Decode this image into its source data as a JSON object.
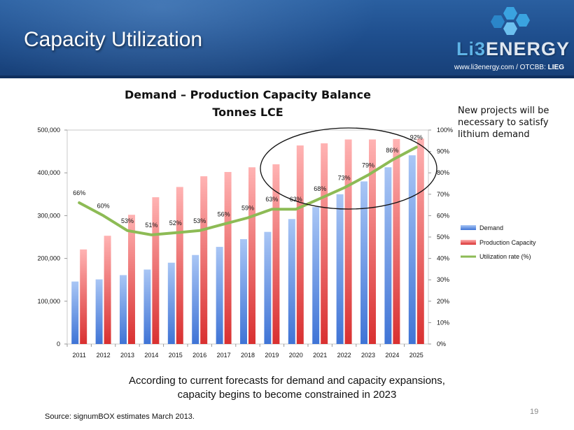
{
  "slide": {
    "title": "Capacity Utilization",
    "logo": {
      "text_prefix": "Li3",
      "text_suffix": "ENERGY",
      "icon": "hexagon-cluster-icon"
    },
    "url_text": "www.li3energy.com / OTCBB: ",
    "ticker": "LIEG",
    "callout": "New projects will be necessary to satisfy lithium demand",
    "caption_line1": "According to current forecasts for demand and capacity expansions,",
    "caption_line2": "capacity begins to become constrained in 2023",
    "source": "Source: signumBOX estimates March 2013.",
    "page_number": "19",
    "colors": {
      "header": "#1f4f8e",
      "demand": "#6c9be6",
      "capacity": "#f06a6a",
      "utilization": "#8dbb55"
    }
  },
  "chart_data": {
    "type": "bar",
    "title": "Demand – Production Capacity Balance",
    "subtitle": "Tonnes LCE",
    "categories": [
      "2011",
      "2012",
      "2013",
      "2014",
      "2015",
      "2016",
      "2017",
      "2018",
      "2019",
      "2020",
      "2021",
      "2022",
      "2023",
      "2024",
      "2025"
    ],
    "series": [
      {
        "name": "Demand",
        "type": "bar",
        "axis": "left",
        "values": [
          146000,
          151000,
          161000,
          174000,
          190000,
          208000,
          227000,
          245000,
          262000,
          292000,
          320000,
          350000,
          380000,
          413000,
          441000
        ]
      },
      {
        "name": "Production Capacity",
        "type": "bar",
        "axis": "left",
        "values": [
          221000,
          253000,
          302000,
          343000,
          367000,
          392000,
          402000,
          413000,
          420000,
          464000,
          469000,
          478000,
          478000,
          479000,
          480000
        ]
      },
      {
        "name": "Utilization rate (%)",
        "type": "line",
        "axis": "right",
        "values": [
          66,
          60,
          53,
          51,
          52,
          53,
          56,
          59,
          63,
          63,
          68,
          73,
          79,
          86,
          92
        ],
        "labels": [
          "66%",
          "60%",
          "53%",
          "51%",
          "52%",
          "53%",
          "56%",
          "59%",
          "63%",
          "63%",
          "68%",
          "73%",
          "79%",
          "86%",
          "92%"
        ]
      }
    ],
    "left_ticks": [
      "0",
      "100,000",
      "200,000",
      "300,000",
      "400,000",
      "500,000"
    ],
    "right_ticks": [
      "0%",
      "10%",
      "20%",
      "30%",
      "40%",
      "50%",
      "60%",
      "70%",
      "80%",
      "90%",
      "100%"
    ],
    "ylim_left": [
      0,
      500000
    ],
    "ylim_right": [
      0,
      100
    ],
    "legend_position": "right",
    "annotation": "ellipse highlighting 2020-2025"
  }
}
